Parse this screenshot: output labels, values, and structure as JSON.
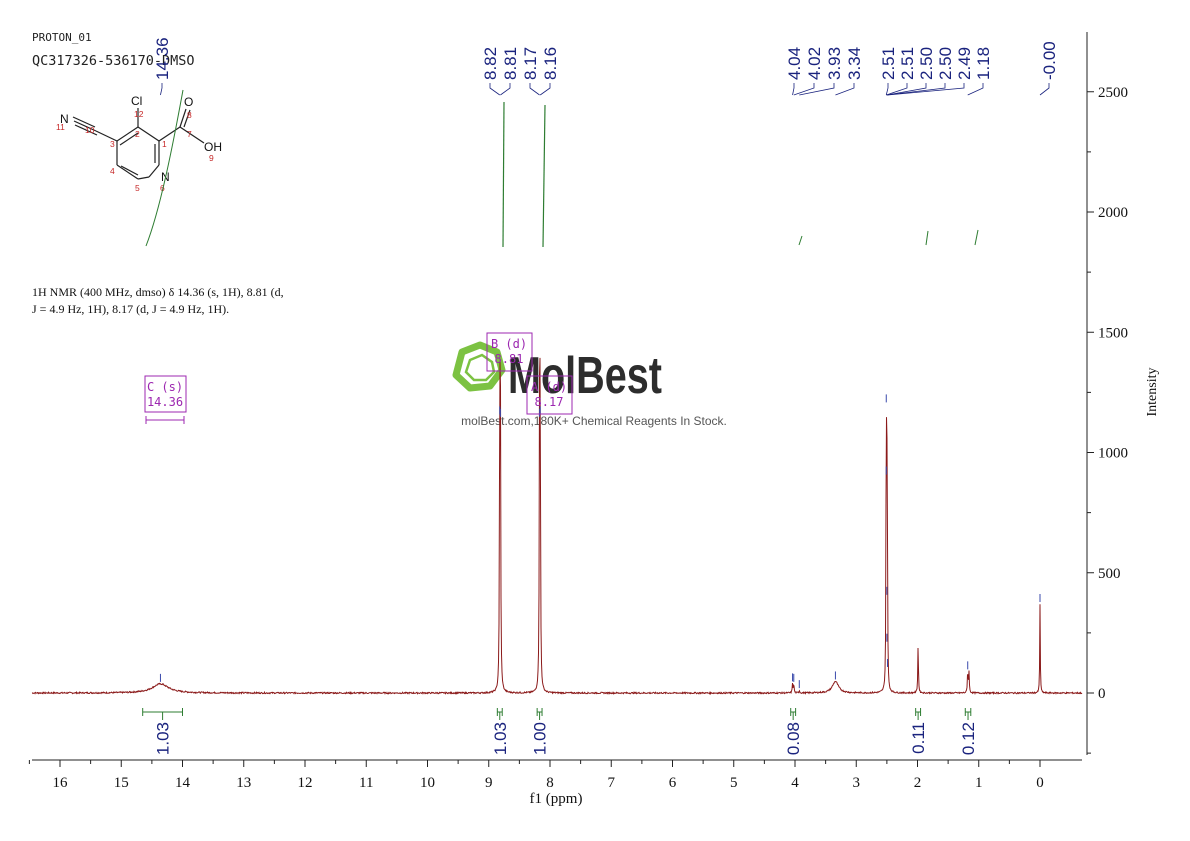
{
  "header": {
    "experiment": "PROTON_01",
    "sample": "QC317326-536170-DMSO"
  },
  "description": {
    "line1": "1H NMR (400 MHz, dmso) δ 14.36 (s, 1H), 8.81 (d,",
    "line2": "J = 4.9 Hz, 1H), 8.17 (d, J = 4.9 Hz, 1H)."
  },
  "structure": {
    "atoms": {
      "cl": "Cl",
      "o": "O",
      "oh": "OH",
      "n_ring": "N",
      "n_nitrile": "N"
    },
    "numbers": [
      "1",
      "2",
      "3",
      "4",
      "5",
      "6",
      "7",
      "8",
      "9",
      "10",
      "11",
      "12"
    ]
  },
  "watermark": {
    "brand": "MolBest",
    "tagline": "molBest.com,180K+ Chemical Reagents In Stock."
  },
  "colors": {
    "spectrum": "#8b1a1a",
    "peak_label": "#1a237e",
    "integral": "#2e7d32",
    "multiplet": "#9c27b0",
    "watermark": "#2d2d2d",
    "watermark_logo": "#7cc242"
  },
  "chart_data": {
    "type": "line",
    "xlabel": "f1 (ppm)",
    "ylabel": "Intensity",
    "xlim": [
      16.5,
      -0.5
    ],
    "ylim": [
      -250,
      2750
    ],
    "x_ticks": [
      16,
      15,
      14,
      13,
      12,
      11,
      10,
      9,
      8,
      7,
      6,
      5,
      4,
      3,
      2,
      1,
      0
    ],
    "y_ticks": [
      0,
      500,
      1000,
      1500,
      2000,
      2500
    ],
    "peak_labels": [
      "14.36",
      "8.82",
      "8.81",
      "8.17",
      "8.16",
      "4.04",
      "4.02",
      "3.93",
      "3.34",
      "2.51",
      "2.51",
      "2.50",
      "2.50",
      "2.49",
      "1.18",
      "-0.00"
    ],
    "peaks": [
      {
        "ppm": 14.36,
        "height": 38,
        "width": 0.16,
        "shape": "broad"
      },
      {
        "ppm": 8.82,
        "height": 1150,
        "width": 0.006
      },
      {
        "ppm": 8.81,
        "height": 1140,
        "width": 0.006
      },
      {
        "ppm": 8.17,
        "height": 1140,
        "width": 0.006
      },
      {
        "ppm": 8.16,
        "height": 1150,
        "width": 0.006
      },
      {
        "ppm": 4.04,
        "height": 40,
        "width": 0.006
      },
      {
        "ppm": 4.02,
        "height": 38,
        "width": 0.006
      },
      {
        "ppm": 3.93,
        "height": 12,
        "width": 0.006
      },
      {
        "ppm": 3.34,
        "height": 48,
        "width": 0.06,
        "shape": "broad"
      },
      {
        "ppm": 2.51,
        "height": 1200,
        "width": 0.005
      },
      {
        "ppm": 2.5,
        "height": 900,
        "width": 0.005
      },
      {
        "ppm": 2.49,
        "height": 400,
        "width": 0.005
      },
      {
        "ppm": 1.99,
        "height": 205,
        "width": 0.006
      },
      {
        "ppm": 1.18,
        "height": 100,
        "width": 0.006
      },
      {
        "ppm": 1.16,
        "height": 90,
        "width": 0.006
      },
      {
        "ppm": 0.0,
        "height": 370,
        "width": 0.005
      }
    ],
    "integrals": [
      {
        "from": 14.65,
        "to": 14.0,
        "value": "1.03"
      },
      {
        "from": 8.86,
        "to": 8.78,
        "value": "1.03"
      },
      {
        "from": 8.21,
        "to": 8.13,
        "value": "1.00"
      },
      {
        "from": 4.07,
        "to": 3.99,
        "value": "0.08"
      },
      {
        "from": 2.03,
        "to": 1.95,
        "value": "0.11"
      },
      {
        "from": 1.22,
        "to": 1.13,
        "value": "0.12"
      }
    ],
    "multiplets": [
      {
        "name": "C (s)",
        "shift": "14.36"
      },
      {
        "name": "B (d)",
        "shift": "8.81"
      },
      {
        "name": "A (d)",
        "shift": "8.17"
      }
    ]
  }
}
